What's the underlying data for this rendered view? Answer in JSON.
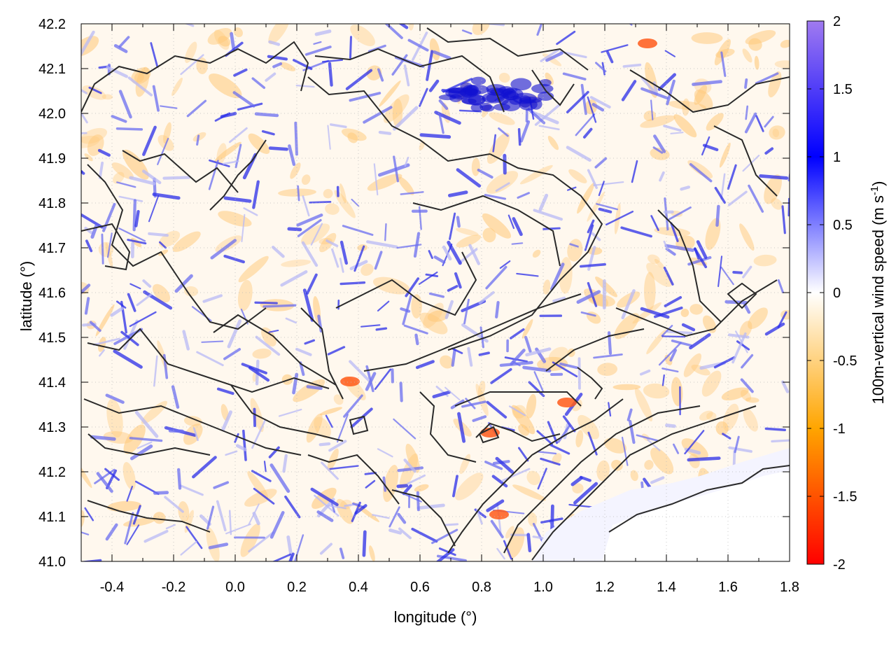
{
  "chart_data": {
    "type": "heatmap",
    "xlabel": "longitude (°)",
    "ylabel": "latitude (°)",
    "colorbar_label": "100m-vertical wind speed (m s",
    "colorbar_label_sup": "-1",
    "colorbar_label_close": ")",
    "xlim": [
      -0.5,
      1.8
    ],
    "ylim": [
      41.0,
      42.2
    ],
    "x_ticks": [
      "-0.4",
      "-0.2",
      "0.0",
      "0.2",
      "0.4",
      "0.6",
      "0.8",
      "1.0",
      "1.2",
      "1.4",
      "1.6",
      "1.8"
    ],
    "y_ticks": [
      "41.0",
      "41.1",
      "41.2",
      "41.3",
      "41.4",
      "41.5",
      "41.6",
      "41.7",
      "41.8",
      "41.9",
      "42.0",
      "42.1",
      "42.2"
    ],
    "colorbar_range": [
      -2,
      2
    ],
    "colorbar_ticks": [
      "-2",
      "-1.5",
      "-1",
      "-0.5",
      "0",
      "0.5",
      "1",
      "1.5",
      "2"
    ],
    "colorscale": {
      "-2": "#ff0000",
      "-1": "#ffa500",
      "0": "#ffffff",
      "1": "#0000ff",
      "2": "#a07af0"
    },
    "grid": true,
    "contours": true
  }
}
